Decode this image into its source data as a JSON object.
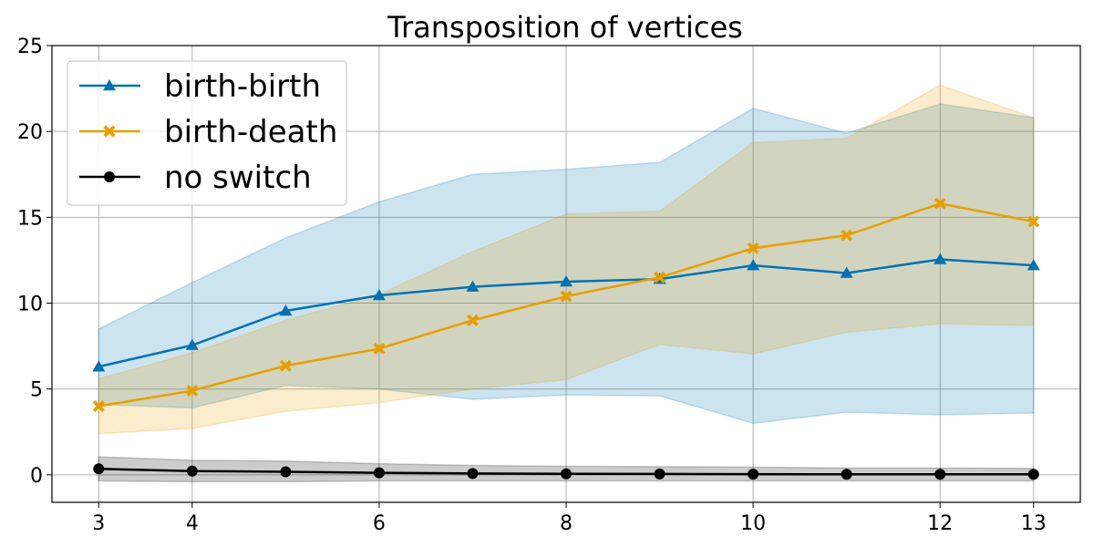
{
  "chart_data": {
    "type": "line",
    "title": "Transposition of vertices",
    "xlabel": "",
    "ylabel": "",
    "x": [
      3,
      4,
      5,
      6,
      7,
      8,
      9,
      10,
      11,
      12,
      13
    ],
    "xticks": [
      3,
      4,
      6,
      8,
      10,
      12,
      13
    ],
    "yticks": [
      0,
      5,
      10,
      15,
      20,
      25
    ],
    "xlim": [
      2.5,
      13.5
    ],
    "ylim": [
      -1.6,
      25
    ],
    "grid": true,
    "legend_position": "top-left",
    "series": [
      {
        "name": "birth-birth",
        "color": "#0072b2",
        "marker": "triangle",
        "values": [
          6.3,
          7.55,
          9.55,
          10.45,
          10.95,
          11.25,
          11.4,
          12.2,
          11.75,
          12.55,
          12.2
        ],
        "band_lower": [
          4.1,
          3.9,
          5.2,
          5.0,
          4.4,
          4.65,
          4.6,
          3.0,
          3.65,
          3.5,
          3.6
        ],
        "band_upper": [
          8.5,
          11.2,
          13.8,
          15.9,
          17.5,
          17.8,
          18.2,
          21.35,
          19.9,
          21.6,
          20.8
        ]
      },
      {
        "name": "birth-death",
        "color": "#e69f00",
        "marker": "x",
        "values": [
          4.0,
          4.9,
          6.35,
          7.35,
          9.0,
          10.4,
          11.5,
          13.2,
          13.95,
          15.8,
          14.75
        ],
        "band_lower": [
          2.4,
          2.7,
          3.7,
          4.2,
          5.0,
          5.55,
          7.6,
          7.05,
          8.3,
          8.8,
          8.7
        ],
        "band_upper": [
          5.6,
          7.1,
          9.0,
          10.5,
          13.0,
          15.2,
          15.35,
          19.35,
          19.6,
          22.7,
          20.8
        ]
      },
      {
        "name": "no switch",
        "color": "#000000",
        "marker": "circle",
        "values": [
          0.35,
          0.22,
          0.18,
          0.12,
          0.08,
          0.06,
          0.05,
          0.04,
          0.03,
          0.03,
          0.03
        ],
        "band_lower": [
          -0.35,
          -0.4,
          -0.4,
          -0.35,
          -0.35,
          -0.35,
          -0.35,
          -0.35,
          -0.35,
          -0.35,
          -0.35
        ],
        "band_upper": [
          1.05,
          0.85,
          0.8,
          0.65,
          0.55,
          0.5,
          0.48,
          0.45,
          0.4,
          0.4,
          0.38
        ]
      }
    ]
  }
}
